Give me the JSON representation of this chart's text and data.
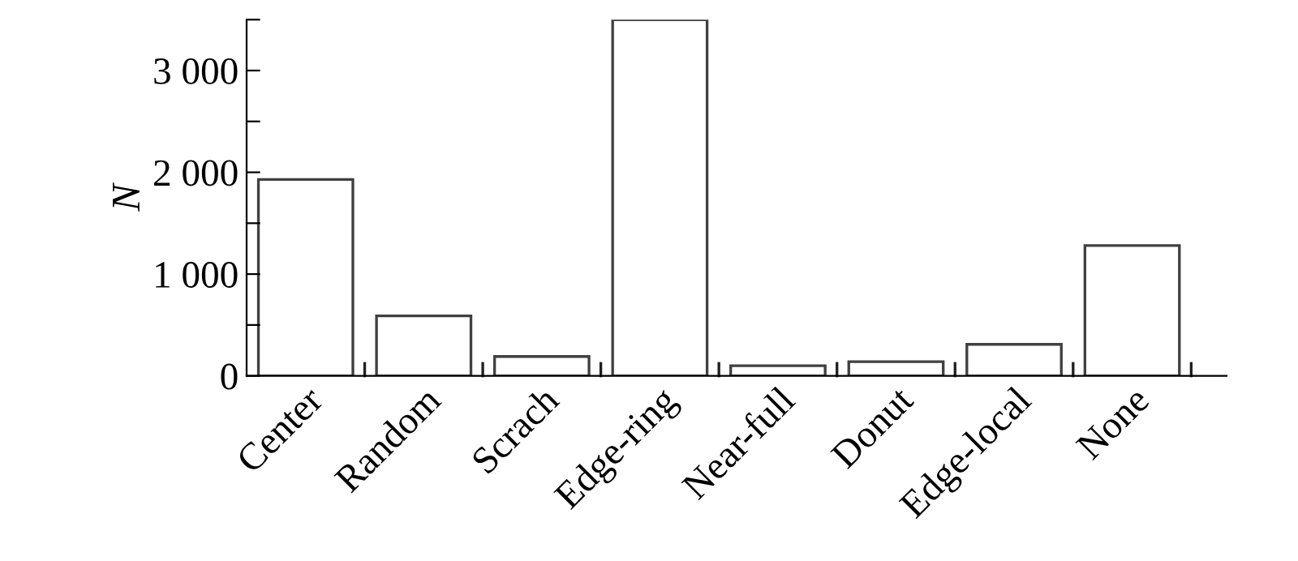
{
  "chart_data": {
    "type": "bar",
    "ylabel": "N",
    "categories": [
      "Center",
      "Random",
      "Scrach",
      "Edge-ring",
      "Near-full",
      "Donut",
      "Edge-local",
      "None"
    ],
    "values": [
      1930,
      590,
      190,
      3500,
      100,
      140,
      310,
      1280
    ],
    "color": "#ffffff",
    "ylim": [
      0,
      3500
    ],
    "yticks": [
      0,
      {
        "value": 500,
        "label": null
      },
      {
        "value": 1000,
        "label": "1 000"
      },
      {
        "value": 1500,
        "label": null
      },
      {
        "value": 2000,
        "label": "2 000"
      },
      {
        "value": 2500,
        "label": null
      },
      {
        "value": 3000,
        "label": "3 000"
      },
      {
        "value": 3500,
        "label": null
      }
    ],
    "grid": false
  }
}
